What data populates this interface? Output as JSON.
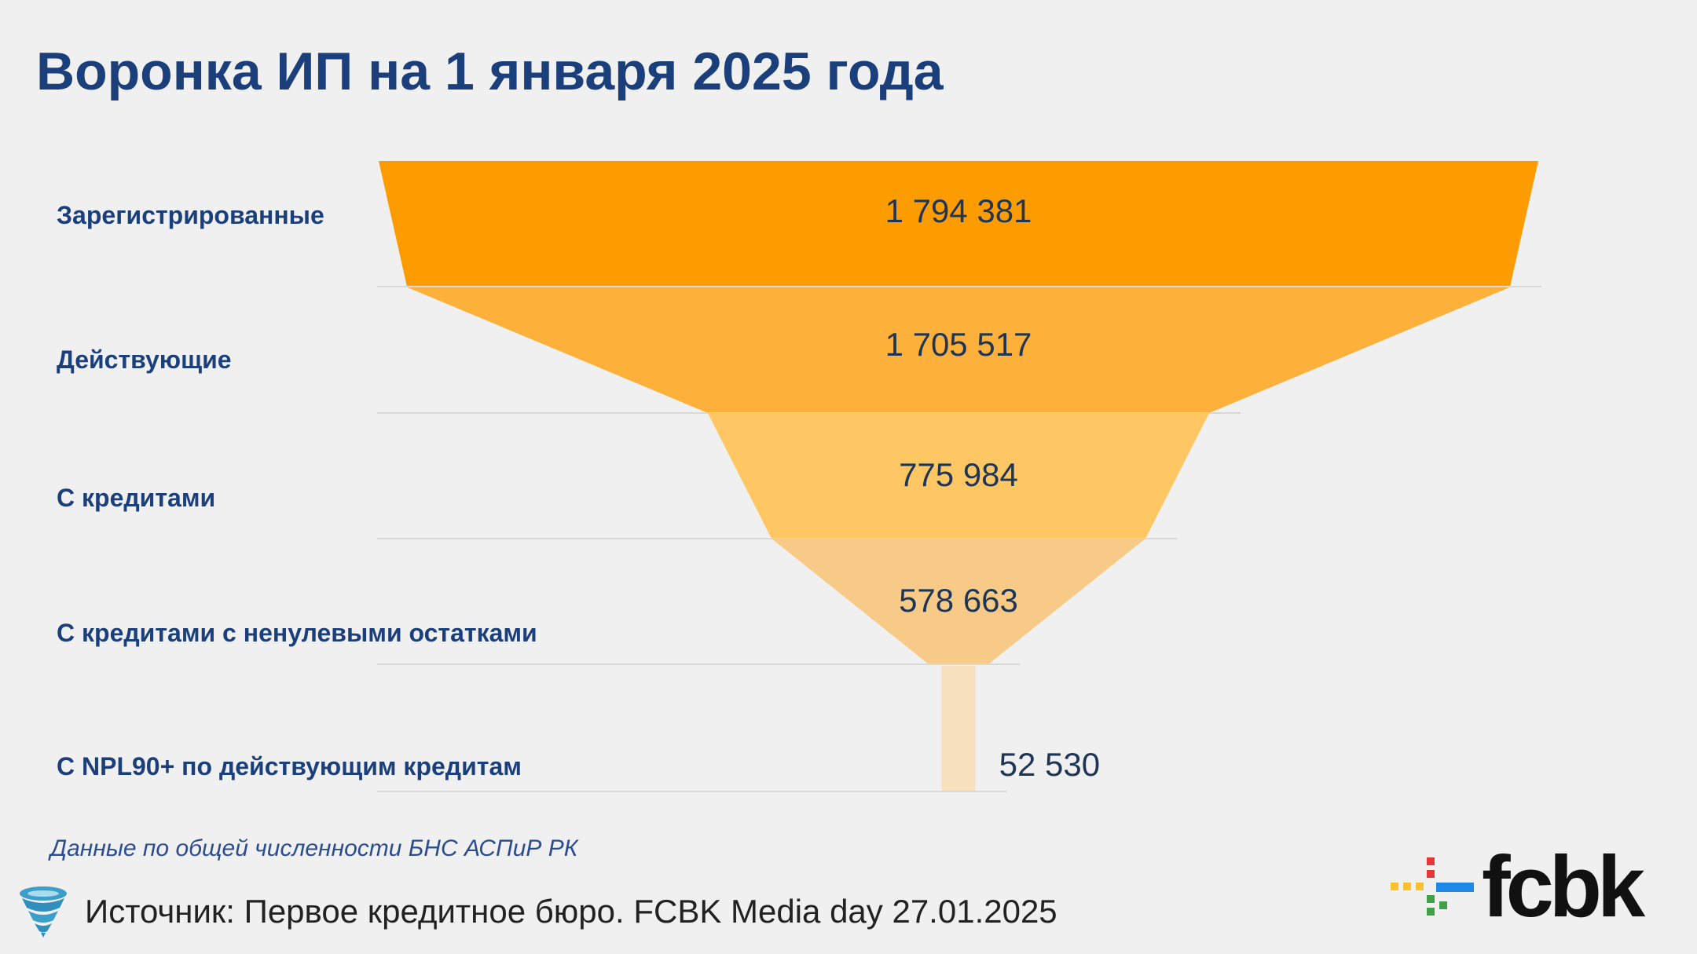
{
  "title": "Воронка ИП на 1 января 2025 года",
  "chart_data": {
    "type": "funnel",
    "title": "Воронка ИП на 1 января 2025 года",
    "stages": [
      {
        "label": "Зарегистрированные",
        "value": 1794381,
        "display": "1 794 381",
        "color": "#fd9c00"
      },
      {
        "label": "Действующие",
        "value": 1705517,
        "display": "1 705 517",
        "color": "#fdb13b"
      },
      {
        "label": "С кредитами",
        "value": 775984,
        "display": "775 984",
        "color": "#ffc764"
      },
      {
        "label": "С кредитами с ненулевыми остатками",
        "value": 578663,
        "display": "578 663",
        "color": "#f7cb87"
      },
      {
        "label": "С NPL90+ по действующим кредитам",
        "value": 52530,
        "display": "52 530",
        "color": "#f6e0bd"
      }
    ]
  },
  "footnote": "Данные по общей численности БНС АСПиР РК",
  "source": "Источник: Первое кредитное бюро. FCBK Media day 27.01.2025",
  "logo": {
    "text": "fcbk",
    "colors": [
      "#e53935",
      "#fbc02d",
      "#43a047",
      "#1e88e5"
    ]
  },
  "icons": {
    "source_icon": "tornado-icon",
    "logo_icon": "plus-dots-icon"
  }
}
